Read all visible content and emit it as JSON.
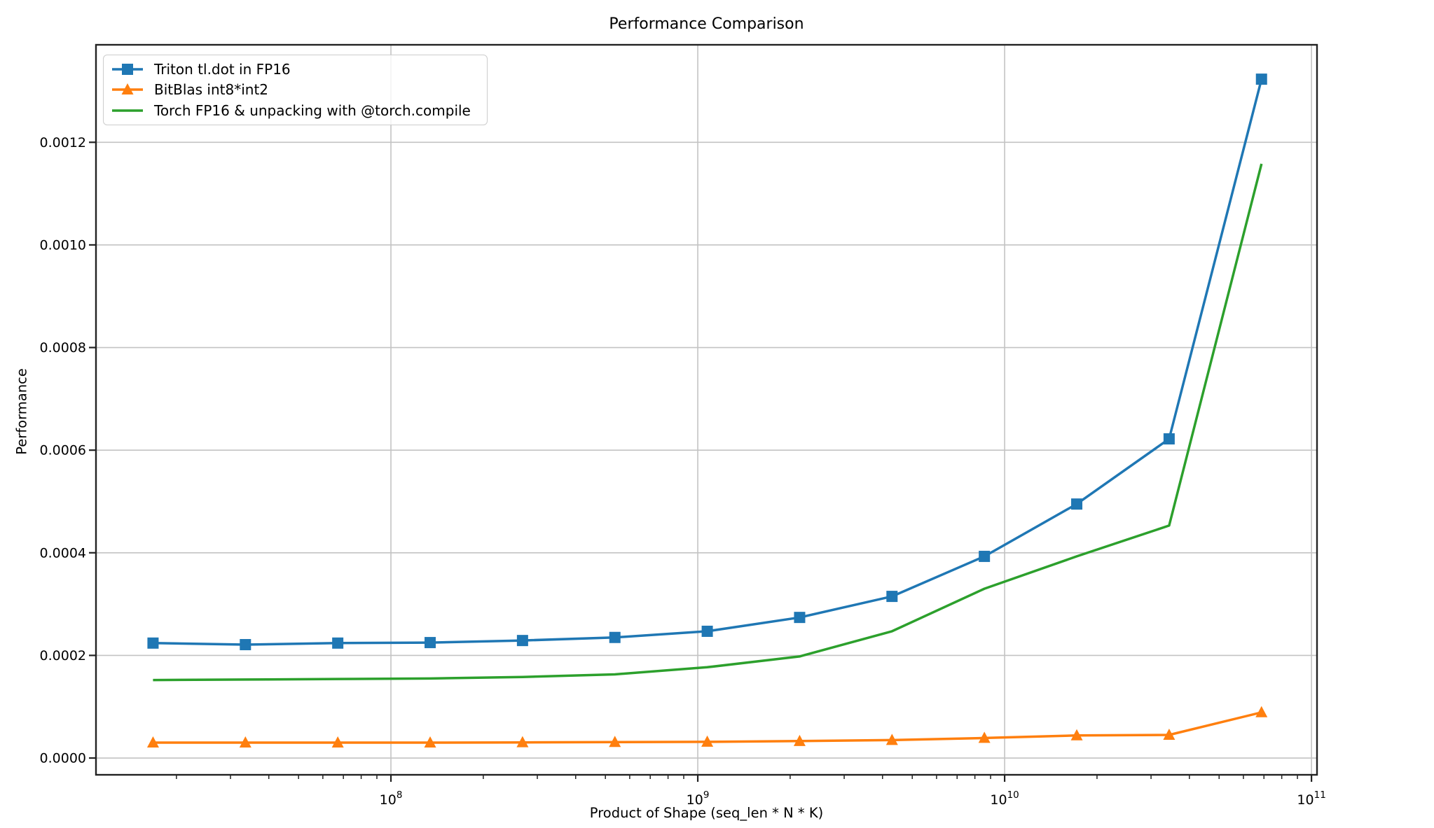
{
  "chart_data": {
    "type": "line",
    "title": "Performance Comparison",
    "xlabel": "Product of Shape (seq_len * N * K)",
    "ylabel": "Performance",
    "x_scale": "log",
    "grid": true,
    "legend_position": "upper left",
    "xlim_log10": [
      7.0388,
      11.018
    ],
    "ylim": [
      -3.27e-05,
      0.00139
    ],
    "x": [
      16777216,
      33554432,
      67108864,
      134217728,
      268435456,
      536870912,
      1073741824,
      2147483648,
      4294967296,
      8589934592,
      17179869184,
      34359738368,
      68719476736
    ],
    "series": [
      {
        "label": "Triton tl.dot in FP16",
        "color": "#1f77b4",
        "marker": "square",
        "values": [
          0.000224,
          0.000221,
          0.000224,
          0.000225,
          0.000229,
          0.000235,
          0.000247,
          0.000274,
          0.000315,
          0.000393,
          0.000495,
          0.000622,
          0.001323
        ]
      },
      {
        "label": "BitBlas int8*int2",
        "color": "#ff7f0e",
        "marker": "triangle-up",
        "values": [
          3e-05,
          3e-05,
          3e-05,
          3e-05,
          3.05e-05,
          3.1e-05,
          3.15e-05,
          3.3e-05,
          3.5e-05,
          3.9e-05,
          4.4e-05,
          4.5e-05,
          8.9e-05
        ]
      },
      {
        "label": "Torch FP16 & unpacking with @torch.compile",
        "color": "#2ca02c",
        "marker": "none",
        "values": [
          0.000152,
          0.000153,
          0.000154,
          0.000155,
          0.000158,
          0.000163,
          0.000177,
          0.000198,
          0.000247,
          0.00033,
          0.000393,
          0.000453,
          0.001158
        ]
      }
    ],
    "x_ticks": [
      {
        "base": "10",
        "exp": "8",
        "value": 100000000
      },
      {
        "base": "10",
        "exp": "9",
        "value": 1000000000
      },
      {
        "base": "10",
        "exp": "10",
        "value": 10000000000
      },
      {
        "base": "10",
        "exp": "11",
        "value": 100000000000
      }
    ],
    "y_ticks": [
      {
        "label": "0.0000",
        "value": 0.0
      },
      {
        "label": "0.0002",
        "value": 0.0002
      },
      {
        "label": "0.0004",
        "value": 0.0004
      },
      {
        "label": "0.0006",
        "value": 0.0006
      },
      {
        "label": "0.0008",
        "value": 0.0008
      },
      {
        "label": "0.0010",
        "value": 0.001
      },
      {
        "label": "0.0012",
        "value": 0.0012
      }
    ],
    "colors": {
      "grid": "#c3c3c3",
      "spine": "#222222",
      "tick_label": "#000000",
      "background": "#ffffff",
      "legend_border": "#cccccc"
    }
  }
}
